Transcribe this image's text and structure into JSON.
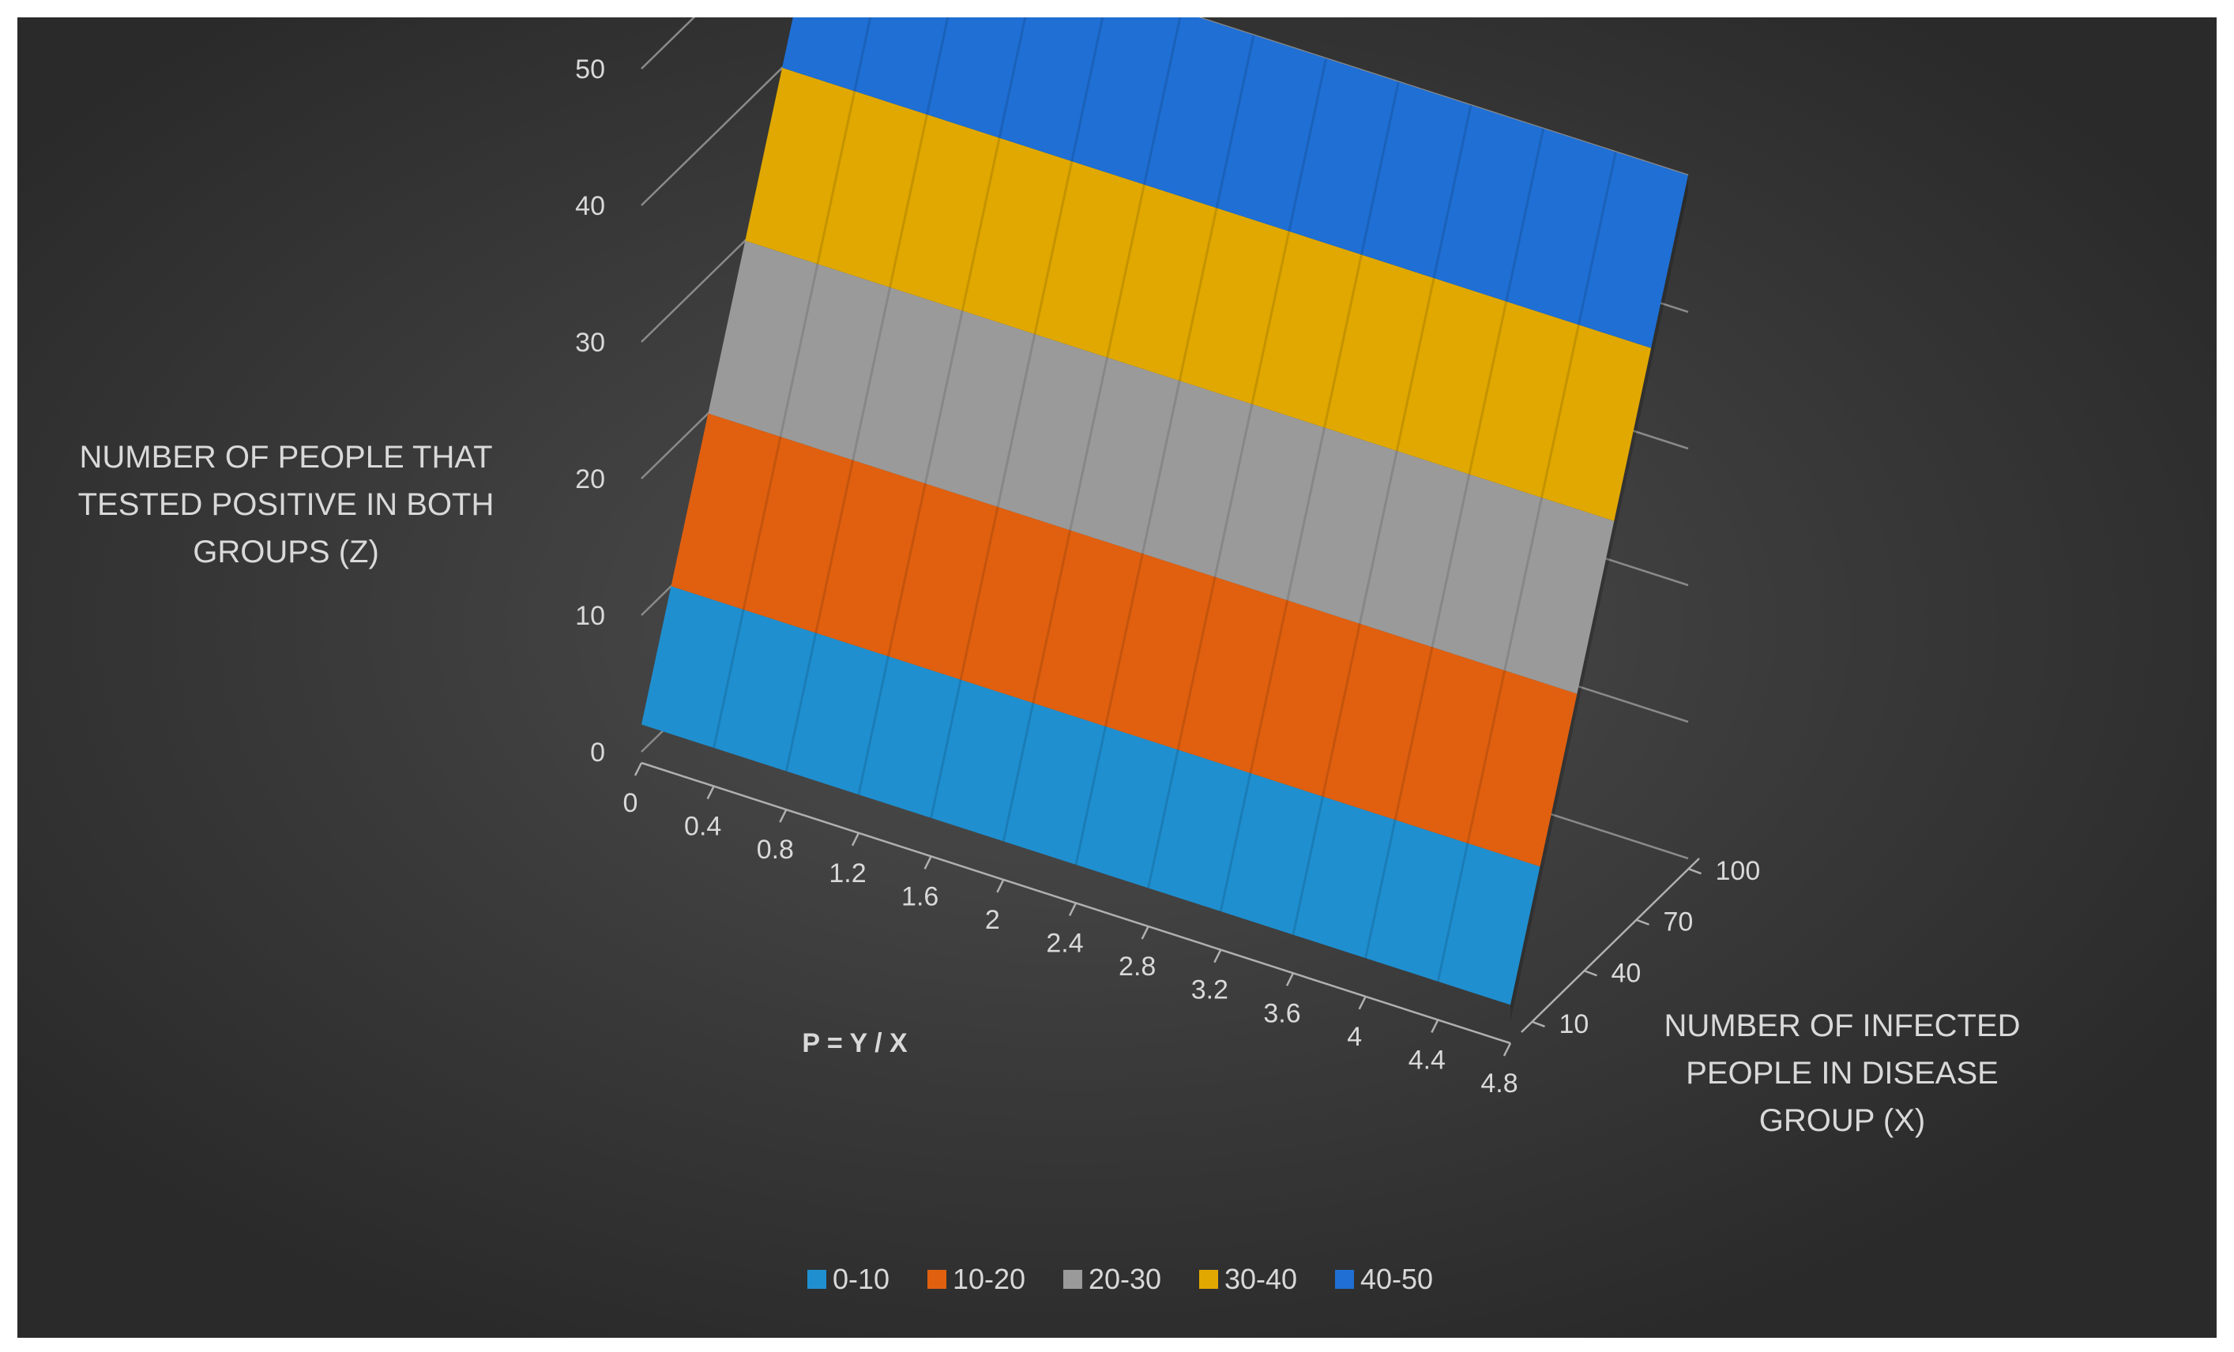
{
  "chart_data": {
    "type": "surface",
    "zlabel_lines": [
      "NUMBER OF PEOPLE THAT",
      "TESTED POSITIVE IN BOTH",
      "GROUPS (Z)"
    ],
    "xlabel": "P = Y / X",
    "ylabel_lines": [
      "NUMBER OF INFECTED",
      "PEOPLE IN DISEASE",
      "GROUP (X)"
    ],
    "p_ticks": [
      "0",
      "0.4",
      "0.8",
      "1.2",
      "1.6",
      "2",
      "2.4",
      "2.8",
      "3.2",
      "3.6",
      "4",
      "4.4",
      "4.8"
    ],
    "x_ticks": [
      "10",
      "40",
      "70",
      "100"
    ],
    "z_ticks": [
      "0",
      "10",
      "20",
      "30",
      "40",
      "50"
    ],
    "zlim": [
      0,
      50
    ],
    "grid": true,
    "legend_position": "bottom",
    "bands": [
      {
        "label": "0-10",
        "range": [
          0,
          10
        ],
        "color": "#1f8fd0"
      },
      {
        "label": "10-20",
        "range": [
          10,
          20
        ],
        "color": "#e0600f"
      },
      {
        "label": "20-30",
        "range": [
          20,
          30
        ],
        "color": "#9a9a9a"
      },
      {
        "label": "30-40",
        "range": [
          30,
          40
        ],
        "color": "#e0a800"
      },
      {
        "label": "40-50",
        "range": [
          40,
          50
        ],
        "color": "#1f6fd4"
      }
    ],
    "surface_z_min": 2,
    "surface_z_max": 50
  }
}
